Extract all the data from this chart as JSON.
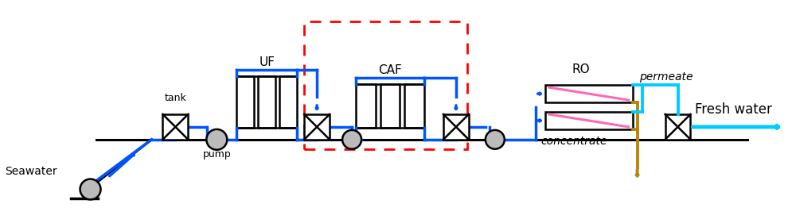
{
  "bg_color": "#ffffff",
  "blue": "#0055ff",
  "light_blue": "#00ccff",
  "pink": "#ff69b4",
  "gold": "#b8860b",
  "gray": "#bbbbbb",
  "black": "#000000",
  "red": "#ff0000",
  "figsize": [
    10.0,
    2.81
  ],
  "dpi": 100,
  "xlim": [
    0,
    10
  ],
  "ylim": [
    0,
    2.81
  ]
}
